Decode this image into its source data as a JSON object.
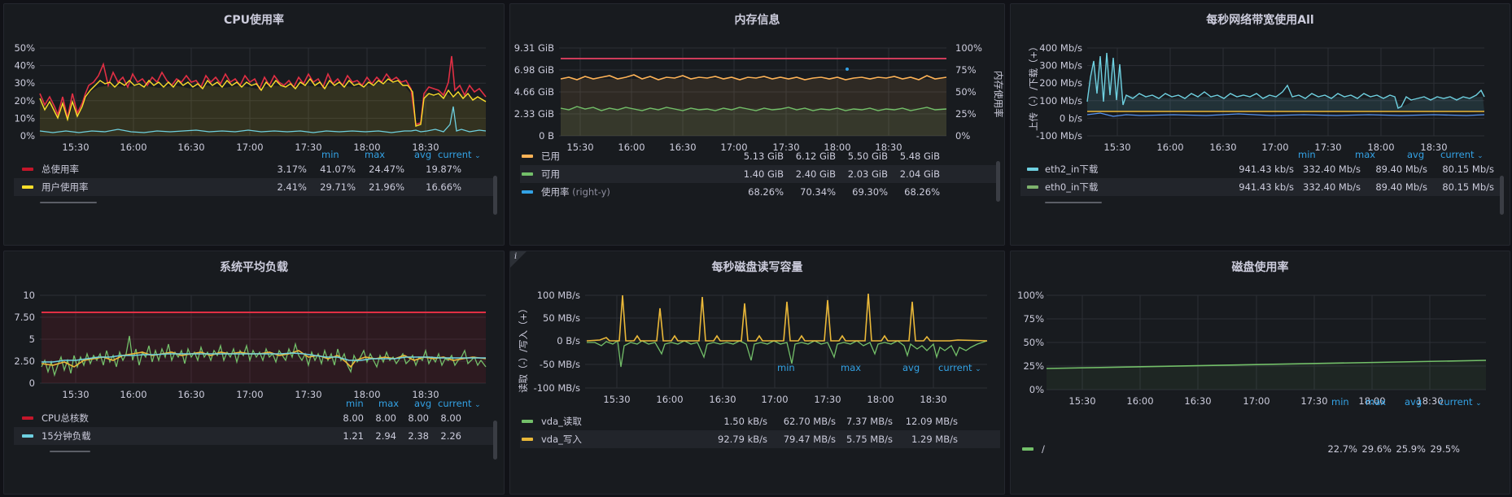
{
  "panels": [
    {
      "title": "CPU使用率",
      "yticks": [
        "50%",
        "40%",
        "30%",
        "20%",
        "10%",
        "0%"
      ],
      "xticks": [
        "15:30",
        "16:00",
        "16:30",
        "17:00",
        "17:30",
        "18:00",
        "18:30"
      ],
      "cols": [
        "min",
        "max",
        "avg",
        "current"
      ],
      "rows": [
        {
          "name": "总使用率",
          "color": "#c4162a",
          "values": [
            "3.17%",
            "41.07%",
            "24.47%",
            "19.87%"
          ]
        },
        {
          "name": "用户使用率",
          "color": "#fade2a",
          "values": [
            "2.41%",
            "29.71%",
            "21.96%",
            "16.66%"
          ]
        }
      ]
    },
    {
      "title": "内存信息",
      "yticks": [
        "9.31 GiB",
        "6.98 GiB",
        "4.66 GiB",
        "2.33 GiB",
        "0 B"
      ],
      "yticks_right": [
        "100%",
        "75%",
        "50%",
        "25%",
        "0%"
      ],
      "ylabel_right": "内存使用率",
      "xticks": [
        "15:30",
        "16:00",
        "16:30",
        "17:00",
        "17:30",
        "18:00",
        "18:30"
      ],
      "rows": [
        {
          "name": "已用",
          "suffix": "",
          "color": "#ffb357",
          "values": [
            "5.13 GiB",
            "6.12 GiB",
            "5.50 GiB",
            "5.48 GiB"
          ]
        },
        {
          "name": "可用",
          "suffix": "",
          "color": "#73bf69",
          "values": [
            "1.40 GiB",
            "2.40 GiB",
            "2.03 GiB",
            "2.04 GiB"
          ]
        },
        {
          "name": "使用率",
          "suffix": "(right-y)",
          "color": "#5794f2",
          "values": [
            "68.26%",
            "70.34%",
            "69.30%",
            "68.26%"
          ]
        }
      ]
    },
    {
      "title": "每秒网络带宽使用All",
      "yticks": [
        "400 Mb/s",
        "300 Mb/s",
        "200 Mb/s",
        "100 Mb/s",
        "0 b/s",
        "-100 Mb/s"
      ],
      "ylabel": "上传（-）/下载（+）",
      "xticks": [
        "15:30",
        "16:00",
        "16:30",
        "17:00",
        "17:30",
        "18:00",
        "18:30"
      ],
      "cols": [
        "min",
        "max",
        "avg",
        "current"
      ],
      "rows": [
        {
          "name": "eth2_in下载",
          "color": "#6ed0e0",
          "values": [
            "941.43 kb/s",
            "332.40 Mb/s",
            "89.40 Mb/s",
            "80.15 Mb/s"
          ]
        },
        {
          "name": "eth0_in下载",
          "color": "#7eb26d",
          "values": [
            "941.43 kb/s",
            "332.40 Mb/s",
            "89.40 Mb/s",
            "80.15 Mb/s"
          ]
        }
      ]
    },
    {
      "title": "系统平均负载",
      "yticks": [
        "10",
        "7.50",
        "5",
        "2.50",
        "0"
      ],
      "xticks": [
        "15:30",
        "16:00",
        "16:30",
        "17:00",
        "17:30",
        "18:00",
        "18:30"
      ],
      "cols": [
        "min",
        "max",
        "avg",
        "current"
      ],
      "rows": [
        {
          "name": "CPU总核数",
          "color": "#c4162a",
          "values": [
            "8.00",
            "8.00",
            "8.00",
            "8.00"
          ]
        },
        {
          "name": "15分钟负载",
          "color": "#6ed0e0",
          "values": [
            "1.21",
            "2.94",
            "2.38",
            "2.26"
          ]
        }
      ]
    },
    {
      "title": "每秒磁盘读写容量",
      "info": "i",
      "yticks": [
        "100 MB/s",
        "50 MB/s",
        "0 B/s",
        "-50 MB/s",
        "-100 MB/s"
      ],
      "ylabel": "读取（-）/写入（+）",
      "xticks": [
        "15:30",
        "16:00",
        "16:30",
        "17:00",
        "17:30",
        "18:00",
        "18:30"
      ],
      "cols": [
        "min",
        "max",
        "avg",
        "current"
      ],
      "rows": [
        {
          "name": "vda_读取",
          "color": "#7eb26d",
          "values": [
            "1.50 kB/s",
            "62.70 MB/s",
            "7.37 MB/s",
            "12.09 MB/s"
          ]
        },
        {
          "name": "vda_写入",
          "color": "#eab839",
          "values": [
            "92.79 kB/s",
            "79.47 MB/s",
            "5.75 MB/s",
            "1.29 MB/s"
          ]
        }
      ]
    },
    {
      "title": "磁盘使用率",
      "yticks": [
        "100%",
        "75%",
        "50%",
        "25%",
        "0%"
      ],
      "xticks": [
        "15:30",
        "16:00",
        "16:30",
        "17:00",
        "17:30",
        "18:00",
        "18:30"
      ],
      "cols": [
        "min",
        "max",
        "avg",
        "current"
      ],
      "rows": [
        {
          "name": "/",
          "color": "#7eb26d",
          "values": [
            "22.7%",
            "29.6%",
            "25.9%",
            "29.5%"
          ]
        }
      ]
    }
  ],
  "caret": "⌄"
}
